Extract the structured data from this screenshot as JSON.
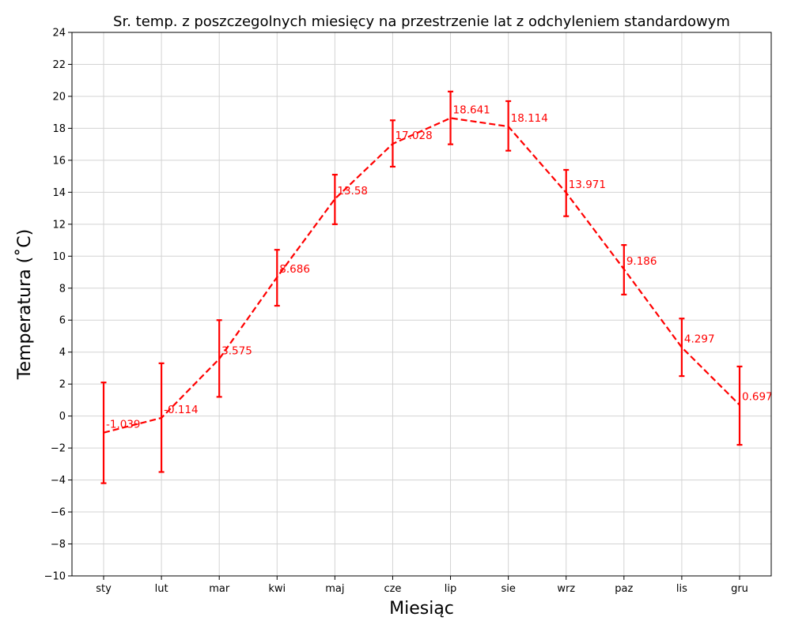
{
  "chart_data": {
    "type": "line",
    "title": "Sr. temp. z poszczegolnych miesięcy na przestrzenie lat z odchyleniem standardowym",
    "xlabel": "Miesiąc",
    "ylabel": "Temperatura ($^\\circ$C)",
    "ylabel_display": "Temperatura (˚C)",
    "categories": [
      "sty",
      "lut",
      "mar",
      "kwi",
      "maj",
      "cze",
      "lip",
      "sie",
      "wrz",
      "paz",
      "lis",
      "gru"
    ],
    "series": [
      {
        "values": [
          -1.039,
          -0.114,
          3.575,
          8.686,
          13.58,
          17.028,
          18.641,
          18.114,
          13.971,
          9.186,
          4.297,
          0.697
        ],
        "error_lower": [
          -4.2,
          -3.5,
          1.2,
          6.9,
          12.0,
          15.6,
          17.0,
          16.6,
          12.5,
          7.6,
          2.5,
          -1.8
        ],
        "error_upper": [
          2.1,
          3.3,
          6.0,
          10.4,
          15.1,
          18.5,
          20.3,
          19.7,
          15.4,
          10.7,
          6.1,
          3.1
        ],
        "value_labels": [
          "-1.039",
          "-0.114",
          "3.575",
          "8.686",
          "13.58",
          "17.028",
          "18.641",
          "18.114",
          "13.971",
          "9.186",
          "4.297",
          "0.697"
        ],
        "color": "#ff0000",
        "line_style": "dashed"
      }
    ],
    "ylim": [
      -10,
      24
    ],
    "yticks": [
      -10,
      -8,
      -6,
      -4,
      -2,
      0,
      2,
      4,
      6,
      8,
      10,
      12,
      14,
      16,
      18,
      20,
      22,
      24
    ],
    "ytick_labels": [
      "−10",
      "−8",
      "−6",
      "−4",
      "−2",
      "0",
      "2",
      "4",
      "6",
      "8",
      "10",
      "12",
      "14",
      "16",
      "18",
      "20",
      "22",
      "24"
    ],
    "grid": true,
    "grid_color": "#d3d3d3"
  }
}
